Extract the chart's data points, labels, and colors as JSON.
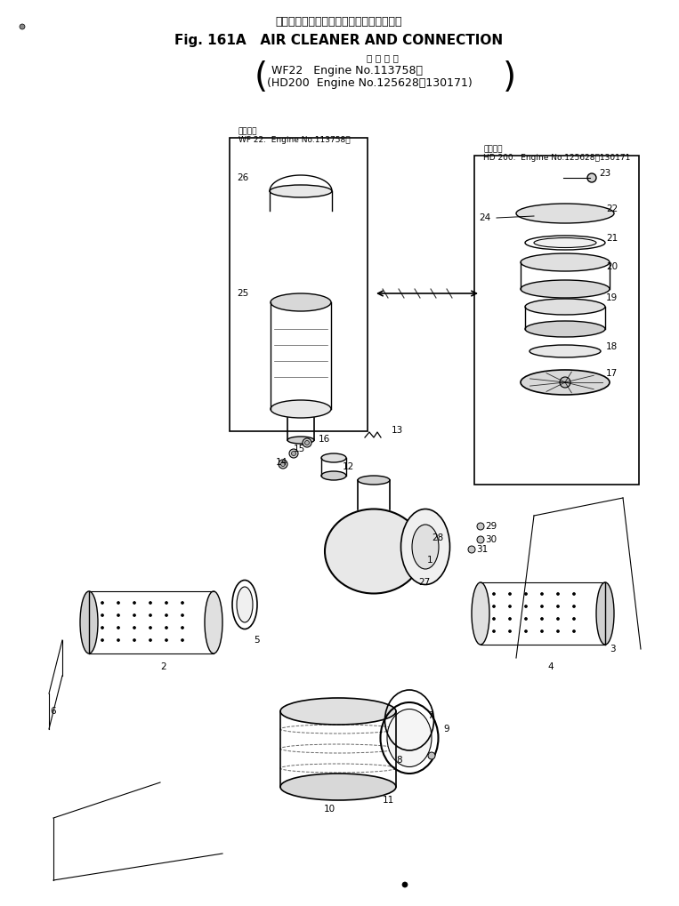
{
  "title_japanese": "エアー　クリーナ　および　コネクション",
  "title_english": "Fig. 161A   AIR CLEANER AND CONNECTION",
  "subtitle_japanese": "適 用 号 機",
  "subtitle_line1": "WF22   Engine No.113758～",
  "subtitle_line2": "(HD200  Engine No.125628～130171)",
  "box1_label_jp": "適用号機",
  "box1_label_en": "WF 22.  Engine No.113758～",
  "box2_label_jp": "適用号機",
  "box2_label_en": "HD 200.  Engine No.125628～130171",
  "bg_color": "#ffffff",
  "line_color": "#000000",
  "text_color": "#000000"
}
